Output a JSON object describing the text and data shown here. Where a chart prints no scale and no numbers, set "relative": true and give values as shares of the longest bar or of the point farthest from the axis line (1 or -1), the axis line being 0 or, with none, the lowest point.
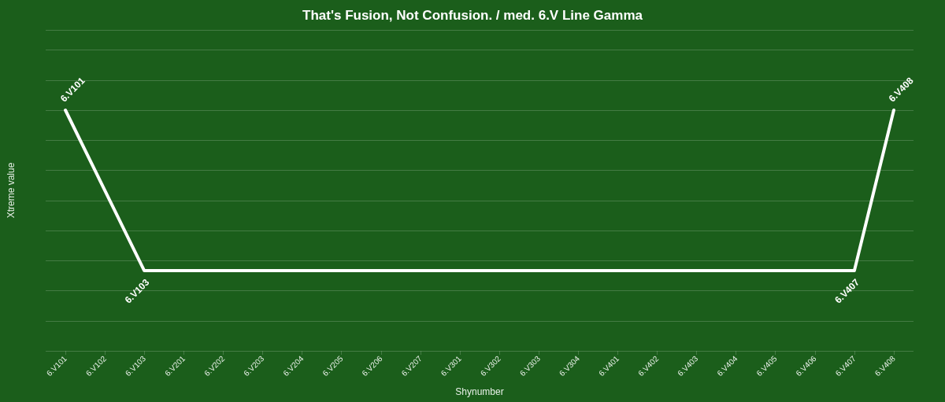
{
  "chart_data": {
    "type": "line",
    "title": "That's Fusion, Not Confusion. / med. 6.V Line Gamma",
    "xlabel": "Shynumber",
    "ylabel": "Xtreme value",
    "categories": [
      "6.V101",
      "6.V102",
      "6.V103",
      "6.V201",
      "6.V202",
      "6.V203",
      "6.V204",
      "6.V205",
      "6.V206",
      "6.V207",
      "6.V301",
      "6.V302",
      "6.V303",
      "6.V304",
      "6.V401",
      "6.V402",
      "6.V403",
      "6.V404",
      "6.V405",
      "6.V406",
      "6.V407",
      "6.V408"
    ],
    "relative": true,
    "series": [
      {
        "color": "#ffffff",
        "values": [
          1,
          null,
          0.333,
          null,
          null,
          null,
          null,
          null,
          null,
          null,
          null,
          null,
          null,
          null,
          null,
          null,
          null,
          null,
          null,
          null,
          0.333,
          1
        ]
      }
    ],
    "annotations": [
      {
        "text": "6.V101",
        "x": "6.V101",
        "y": 1
      },
      {
        "text": "6.V103",
        "x": "6.V103",
        "y": 0.333
      },
      {
        "text": "6.V407",
        "x": "6.V407",
        "y": 0.333
      },
      {
        "text": "6.V408",
        "x": "6.V408",
        "y": 1
      }
    ],
    "grid": "y",
    "marker": "none",
    "line_style": "solid"
  }
}
